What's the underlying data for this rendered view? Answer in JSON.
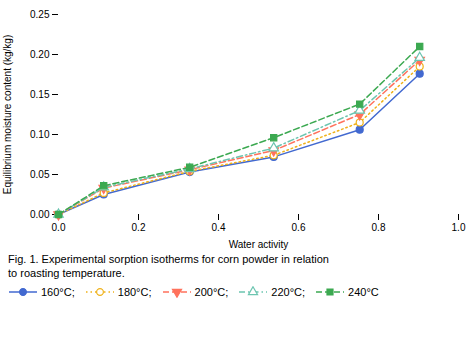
{
  "chart_data": {
    "type": "line",
    "x": [
      0.0,
      0.113,
      0.328,
      0.538,
      0.753,
      0.903
    ],
    "series": [
      {
        "name": "160°C;",
        "values": [
          0.0,
          0.025,
          0.053,
          0.072,
          0.106,
          0.176
        ],
        "marker": "circle",
        "line_style": "solid"
      },
      {
        "name": "180°C;",
        "values": [
          0.0,
          0.027,
          0.054,
          0.074,
          0.115,
          0.185
        ],
        "marker": "circle-open",
        "line_style": "dotted"
      },
      {
        "name": "200°C;",
        "values": [
          0.0,
          0.033,
          0.056,
          0.08,
          0.125,
          0.193
        ],
        "marker": "triangle-down",
        "line_style": "dashed"
      },
      {
        "name": "220°C;",
        "values": [
          0.0,
          0.034,
          0.057,
          0.083,
          0.13,
          0.196
        ],
        "marker": "triangle-up-open",
        "line_style": "dashdot"
      },
      {
        "name": "240°C",
        "values": [
          0.0,
          0.036,
          0.059,
          0.096,
          0.138,
          0.21
        ],
        "marker": "square",
        "line_style": "dashed"
      }
    ],
    "xlabel": "Water activity",
    "ylabel": "Equilibrium moisture content (kg/kg)",
    "xlim": [
      0.0,
      1.0
    ],
    "ylim": [
      0.0,
      0.25
    ],
    "xticks": [
      {
        "value": 0.0,
        "label": "0.0"
      },
      0.2,
      0.4,
      0.6,
      0.8,
      {
        "value": 1.0,
        "label": "1.0"
      }
    ],
    "yticks": [
      {
        "value": 0.0,
        "label": "0.00"
      },
      0.05,
      {
        "value": 0.1,
        "label": "0.10"
      },
      0.15,
      {
        "value": 0.2,
        "label": "0.20"
      },
      0.25
    ],
    "caption": [
      "Fig. 1. Experimental sorption isotherms for corn powder in relation",
      "to roasting temperature."
    ],
    "legend": "bottom"
  }
}
